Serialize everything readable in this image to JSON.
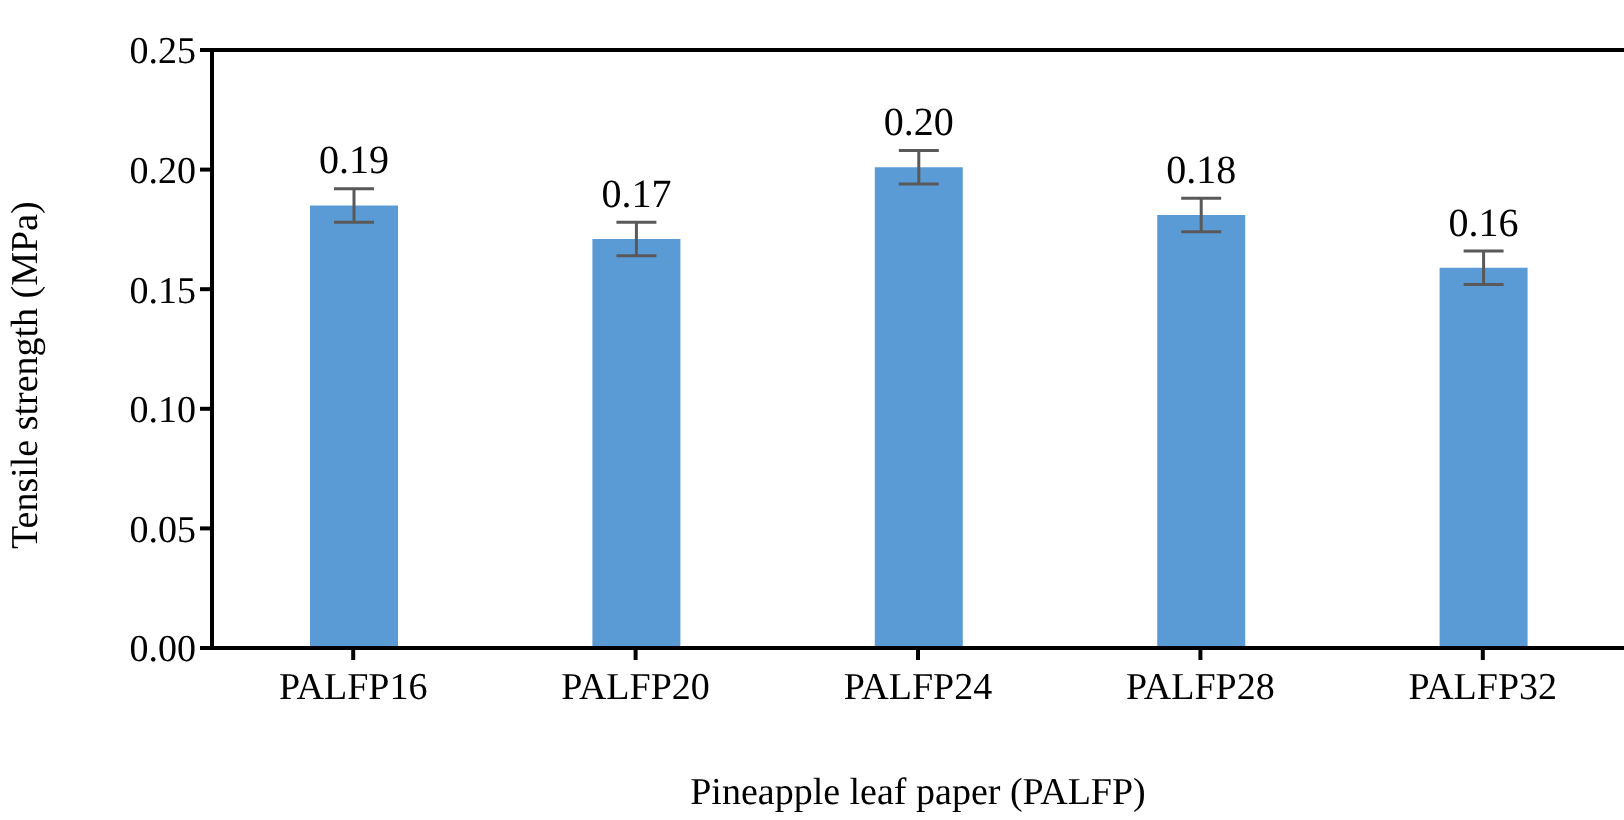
{
  "chart_data": {
    "type": "bar",
    "xlabel": "Pineapple leaf paper (PALFP)",
    "ylabel": "Tensile strength (MPa)",
    "categories": [
      "PALFP16",
      "PALFP20",
      "PALFP24",
      "PALFP28",
      "PALFP32"
    ],
    "values": [
      0.185,
      0.171,
      0.201,
      0.181,
      0.159
    ],
    "errors": [
      0.007,
      0.007,
      0.007,
      0.007,
      0.007
    ],
    "value_labels": [
      "0.19",
      "0.17",
      "0.20",
      "0.18",
      "0.16"
    ],
    "color": "#5b9bd5",
    "ylim": [
      0,
      0.25
    ],
    "yticks": [
      {
        "value": 0,
        "label": "0.00"
      },
      {
        "value": 0.05,
        "label": "0.05"
      },
      {
        "value": 0.1,
        "label": "0.10"
      },
      {
        "value": 0.15,
        "label": "0.15"
      },
      {
        "value": 0.2,
        "label": "0.20"
      },
      {
        "value": 0.25,
        "label": "0.25"
      }
    ],
    "grid": false,
    "legend": false
  }
}
